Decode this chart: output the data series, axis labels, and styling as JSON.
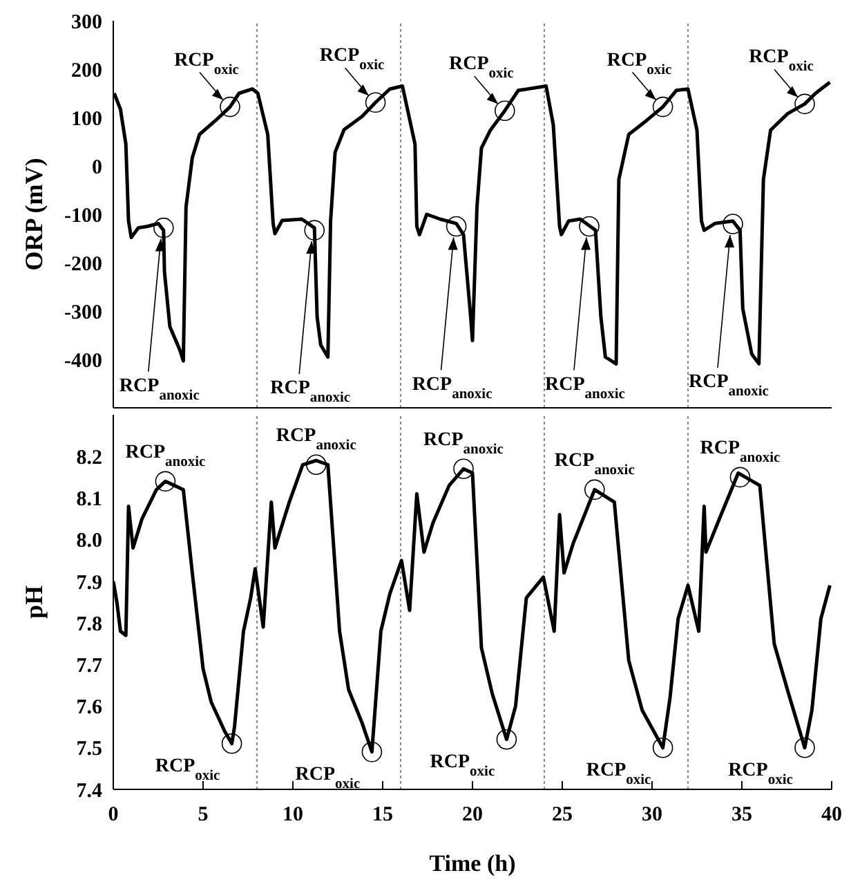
{
  "chart_data": [
    {
      "type": "line",
      "ylabel": "ORP (mV)",
      "xlim": [
        0,
        40
      ],
      "xticks": [
        0,
        5,
        10,
        15,
        20,
        25,
        30,
        35,
        40
      ],
      "ylim": [
        -500,
        300
      ],
      "yticks": [
        -400,
        -300,
        -200,
        -100,
        0,
        100,
        200,
        300
      ],
      "tick_labels": "y",
      "series": [
        {
          "color": "#000000",
          "x": [
            0.05,
            0.4,
            0.7,
            0.85,
            1.0,
            1.4,
            1.9,
            2.5,
            2.8,
            2.85,
            3.15,
            3.7,
            3.9,
            4.05,
            4.4,
            4.8,
            5.7,
            6.5,
            7.0,
            7.75,
            8.05,
            8.6,
            8.9,
            9.0,
            9.4,
            10.5,
            11.2,
            11.35,
            11.55,
            11.95,
            12.1,
            12.35,
            12.85,
            13.85,
            14.6,
            15.4,
            16.1,
            16.8,
            16.9,
            17.05,
            17.45,
            18.2,
            19.1,
            19.5,
            19.9,
            20.0,
            20.25,
            20.5,
            21.0,
            21.8,
            22.55,
            24.1,
            24.5,
            24.85,
            24.95,
            25.35,
            26.0,
            26.85,
            27.15,
            27.4,
            28.0,
            28.15,
            28.7,
            29.7,
            30.6,
            31.35,
            32.0,
            32.5,
            32.75,
            32.9,
            33.5,
            34.5,
            34.9,
            35.05,
            35.55,
            35.95,
            36.2,
            36.6,
            37.55,
            38.5,
            39.1,
            39.9
          ],
          "values": [
            150,
            117,
            45,
            -114,
            -148,
            -128,
            -125,
            -119,
            -133,
            -219,
            -332,
            -380,
            -403,
            -85,
            17,
            65,
            94,
            122,
            150,
            159,
            150,
            65,
            -119,
            -140,
            -113,
            -110,
            -128,
            -312,
            -370,
            -395,
            -114,
            28,
            75,
            102,
            131,
            159,
            165,
            45,
            -125,
            -142,
            -100,
            -110,
            -119,
            -142,
            -312,
            -361,
            -85,
            37,
            74,
            114,
            156,
            165,
            85,
            -125,
            -142,
            -114,
            -110,
            -133,
            -312,
            -395,
            -409,
            -28,
            65,
            94,
            122,
            156,
            159,
            74,
            -114,
            -133,
            -119,
            -114,
            -133,
            -295,
            -389,
            -409,
            -28,
            74,
            108,
            128,
            150,
            173
          ]
        }
      ],
      "ref_lines": [
        {
          "axis": "x",
          "value": 8,
          "color": "#888888",
          "line_style": "dotted"
        },
        {
          "axis": "x",
          "value": 16,
          "color": "#888888",
          "line_style": "dotted"
        },
        {
          "axis": "x",
          "value": 24,
          "color": "#888888",
          "line_style": "dotted"
        },
        {
          "axis": "x",
          "value": 32,
          "color": "#888888",
          "line_style": "dotted"
        }
      ],
      "annotations": [
        {
          "text": "RCP$_{oxic}$",
          "x": 6.5,
          "y": 122
        },
        {
          "text": "RCP$_{oxic}$",
          "x": 14.6,
          "y": 131
        },
        {
          "text": "RCP$_{oxic}$",
          "x": 21.8,
          "y": 114
        },
        {
          "text": "RCP$_{oxic}$",
          "x": 30.6,
          "y": 122
        },
        {
          "text": "RCP$_{oxic}$",
          "x": 38.5,
          "y": 128
        },
        {
          "text": "RCP$_{anoxic}$",
          "x": 2.8,
          "y": -128
        },
        {
          "text": "RCP$_{anoxic}$",
          "x": 11.2,
          "y": -133
        },
        {
          "text": "RCP$_{anoxic}$",
          "x": 19.1,
          "y": -125
        },
        {
          "text": "RCP$_{anoxic}$",
          "x": 26.5,
          "y": -125
        },
        {
          "text": "RCP$_{anoxic}$",
          "x": 34.5,
          "y": -120
        }
      ]
    },
    {
      "type": "line",
      "xlabel": "Time (h)",
      "ylabel": "pH",
      "xlim": [
        0,
        40
      ],
      "xticks": [
        0,
        5,
        10,
        15,
        20,
        25,
        30,
        35,
        40
      ],
      "ylim": [
        7.4,
        8.3
      ],
      "yticks": [
        7.4,
        7.5,
        7.6,
        7.7,
        7.8,
        7.9,
        {
          "value": 8,
          "label": "8.0"
        },
        8.1,
        8.2
      ],
      "series": [
        {
          "color": "#000000",
          "x": [
            0,
            0.2,
            0.4,
            0.7,
            0.85,
            1.1,
            1.6,
            2.4,
            2.9,
            3.4,
            3.9,
            4.4,
            5.0,
            5.45,
            6.2,
            6.6,
            6.75,
            7.25,
            7.65,
            7.9,
            8.35,
            8.8,
            9.0,
            9.8,
            10.55,
            11.3,
            11.95,
            12.6,
            13.1,
            13.85,
            14.4,
            14.9,
            15.4,
            16.05,
            16.5,
            16.9,
            17.3,
            17.8,
            18.7,
            19.5,
            20.0,
            20.5,
            21.1,
            21.9,
            22.4,
            23.0,
            23.95,
            24.55,
            24.85,
            25.1,
            25.6,
            26.8,
            27.9,
            28.7,
            29.45,
            30.6,
            31.0,
            31.45,
            32.0,
            32.6,
            32.9,
            33.0,
            33.75,
            34.8,
            36.0,
            36.8,
            37.6,
            38.5,
            38.9,
            39.4,
            39.9
          ],
          "values": [
            7.9,
            7.85,
            7.78,
            7.77,
            8.08,
            7.98,
            8.05,
            8.12,
            8.14,
            8.13,
            8.12,
            7.92,
            7.69,
            7.61,
            7.54,
            7.51,
            7.55,
            7.78,
            7.86,
            7.93,
            7.79,
            8.09,
            7.98,
            8.09,
            8.18,
            8.19,
            8.18,
            7.78,
            7.64,
            7.56,
            7.49,
            7.78,
            7.87,
            7.95,
            7.83,
            8.11,
            7.97,
            8.04,
            8.13,
            8.17,
            8.16,
            7.74,
            7.63,
            7.52,
            7.6,
            7.86,
            7.91,
            7.78,
            8.06,
            7.92,
            7.99,
            8.12,
            8.09,
            7.71,
            7.59,
            7.5,
            7.62,
            7.81,
            7.89,
            7.78,
            8.08,
            7.97,
            8.05,
            8.16,
            8.13,
            7.75,
            7.63,
            7.5,
            7.59,
            7.81,
            7.89
          ]
        }
      ],
      "ref_lines": [
        {
          "axis": "x",
          "value": 8,
          "color": "#888888",
          "line_style": "dotted"
        },
        {
          "axis": "x",
          "value": 16,
          "color": "#888888",
          "line_style": "dotted"
        },
        {
          "axis": "x",
          "value": 24,
          "color": "#888888",
          "line_style": "dotted"
        },
        {
          "axis": "x",
          "value": 32,
          "color": "#888888",
          "line_style": "dotted"
        }
      ],
      "annotations": [
        {
          "text": "RCP$_{anoxic}$",
          "x": 2.9,
          "y": 8.14
        },
        {
          "text": "RCP$_{anoxic}$",
          "x": 11.3,
          "y": 8.18
        },
        {
          "text": "RCP$_{anoxic}$",
          "x": 19.5,
          "y": 8.17
        },
        {
          "text": "RCP$_{anoxic}$",
          "x": 26.8,
          "y": 8.12
        },
        {
          "text": "RCP$_{anoxic}$",
          "x": 34.9,
          "y": 8.15
        },
        {
          "text": "RCP$_{oxic}$",
          "x": 6.6,
          "y": 7.51
        },
        {
          "text": "RCP$_{oxic}$",
          "x": 14.4,
          "y": 7.49
        },
        {
          "text": "RCP$_{oxic}$",
          "x": 21.9,
          "y": 7.52
        },
        {
          "text": "RCP$_{oxic}$",
          "x": 30.6,
          "y": 7.5
        },
        {
          "text": "RCP$_{oxic}$",
          "x": 38.5,
          "y": 7.5
        }
      ]
    }
  ]
}
